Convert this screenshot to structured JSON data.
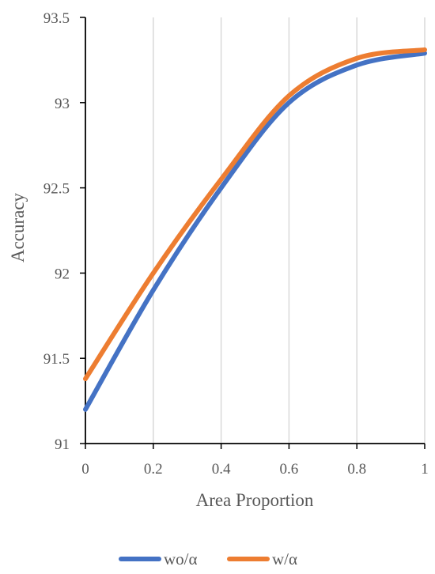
{
  "chart_data": {
    "type": "line",
    "title": "",
    "xlabel": "Area Proportion",
    "ylabel": "Accuracy",
    "xlim": [
      0,
      1
    ],
    "ylim": [
      91,
      93.5
    ],
    "x_ticks": [
      0,
      0.2,
      0.4,
      0.6,
      0.8,
      1
    ],
    "x_tick_labels": [
      "0",
      "0.2",
      "0.4",
      "0.6",
      "0.8",
      "1"
    ],
    "y_ticks": [
      91,
      91.5,
      92,
      92.5,
      93,
      93.5
    ],
    "y_tick_labels": [
      "91",
      "91.5",
      "92",
      "92.5",
      "93",
      "93.5"
    ],
    "grid": "vertical",
    "legend_position": "bottom",
    "series": [
      {
        "name": "wo/α",
        "color": "#4472C4",
        "x": [
          0,
          0.2,
          0.4,
          0.6,
          0.8,
          1
        ],
        "y": [
          91.2,
          91.9,
          92.5,
          93.0,
          93.22,
          93.29
        ]
      },
      {
        "name": "w/α",
        "color": "#ED7D31",
        "x": [
          0,
          0.2,
          0.4,
          0.6,
          0.8,
          1
        ],
        "y": [
          91.38,
          92.0,
          92.55,
          93.04,
          93.26,
          93.31
        ]
      }
    ]
  }
}
